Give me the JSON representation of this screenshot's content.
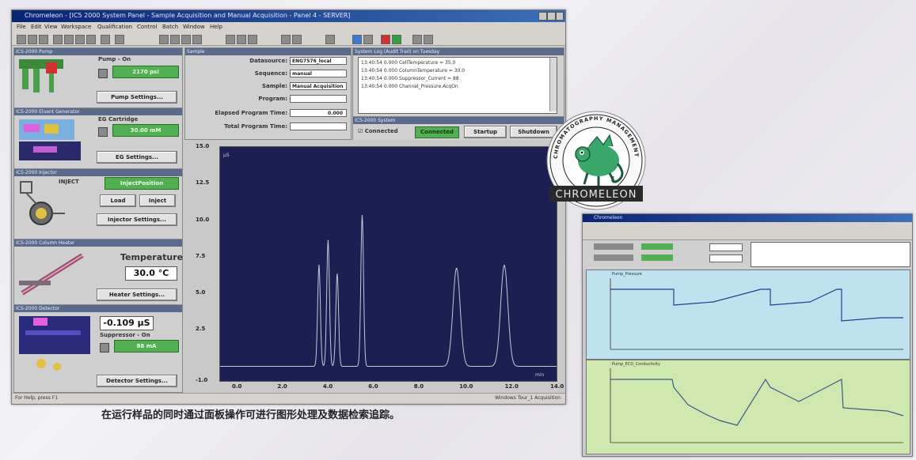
{
  "main_window": {
    "title": "Chromeleon - [IC5 2000 System Panel - Sample Acquisition and Manual Acquisition - Panel 4 - SERVER]",
    "menu": [
      "File",
      "Edit",
      "View",
      "Workspace",
      "Qualification",
      "Control",
      "Batch",
      "Window",
      "Help"
    ],
    "pump_panel": {
      "title": "ICS-2000 Pump",
      "pump_label": "Pump - On",
      "pressure": "2170 psi",
      "settings_button": "Pump Settings..."
    },
    "eluent_panel": {
      "title": "ICS-2000 Eluent Generator",
      "cartridge_label": "EG Cartridge",
      "concentration": "30.00 mM",
      "settings_button": "EG Settings..."
    },
    "injector_panel": {
      "title": "ICS-2000 Injector",
      "mode_label": "INJECT",
      "state": "InjectPosition",
      "load_button": "Load",
      "inject_button": "Inject",
      "settings_button": "Injector Settings..."
    },
    "column_panel": {
      "title": "ICS-2000 Column Heater",
      "temp_label": "Temperature",
      "temperature": "30.0 °C",
      "settings_button": "Heater Settings..."
    },
    "detector_panel": {
      "title": "ICS-2000 Detector",
      "conductivity": "-0.109 µS",
      "suppressor_label": "Suppressor - On",
      "current": "88 mA",
      "settings_button": "Detector Settings..."
    },
    "sample_panel": {
      "title": "Sample",
      "datasource_label": "Datasource:",
      "datasource_value": "ENG7576_local",
      "sequence_label": "Sequence:",
      "sequence_value": "manual",
      "sample_label": "Sample:",
      "sample_value": "Manual Acquisition",
      "program_label": "Program:",
      "program_value": "",
      "elapsed_label": "Elapsed Program Time:",
      "elapsed_value": "0.000",
      "total_label": "Total Program Time:",
      "total_value": ""
    },
    "audit_panel": {
      "title": "System Log (Audit Trail) on Tuesday",
      "lines": [
        "13:40:54 0.000 CellTemperature = 35.0",
        "13:40:54 0.000 ColumnTemperature = 30.0",
        "13:40:54 0.000 Suppressor_Current = 88",
        "13:40:54 0.000 Channel_Pressure.AcqOn"
      ]
    },
    "system_panel": {
      "title": "ICS-2000 System",
      "connected_check": "Connected",
      "connected_status": "Connected",
      "startup_button": "Startup",
      "shutdown_button": "Shutdown"
    },
    "chart_yticks": [
      "15.0",
      "12.5",
      "10.0",
      "7.5",
      "5.0",
      "2.5",
      "-1.0"
    ],
    "chart_xticks": [
      "0.0",
      "2.0",
      "4.0",
      "6.0",
      "8.0",
      "10.0",
      "12.0",
      "14.0"
    ],
    "chart_unit_left": "µS",
    "chart_unit_right": "min",
    "status_left": "For Help, press F1",
    "status_right": "Windows Tour_1     Acquisition"
  },
  "caption": "在运行样品的同时通过面板操作可进行图形处理及数据检索追踪。",
  "logo": {
    "ring_text": "CHROMATOGRAPHY MANAGEMENT SYSTEM",
    "banner_text": "CHROMELEON",
    "colors": {
      "ring": "#ffffff",
      "banner": "#2a2a2a",
      "figure": "#3aa66a"
    }
  },
  "second_window": {
    "title": "Chromeleon",
    "top_chart_label": "Pump_Pressure",
    "bottom_chart_label": "Pump_ECD_Conductivity"
  },
  "chart_data": [
    {
      "type": "line",
      "title": "",
      "xlabel": "min",
      "ylabel": "µS",
      "xlim": [
        -0.8,
        14.0
      ],
      "ylim": [
        -1.0,
        15.0
      ],
      "series": [
        {
          "peaks": [
            {
              "x": 3.55,
              "y": 6.9
            },
            {
              "x": 3.95,
              "y": 8.6
            },
            {
              "x": 4.35,
              "y": 6.3
            },
            {
              "x": 5.45,
              "y": 10.3
            },
            {
              "x": 9.6,
              "y": 6.7
            },
            {
              "x": 11.7,
              "y": 6.9
            }
          ],
          "baseline": 0.0
        }
      ],
      "colors": {
        "background": "#1b1f52",
        "trace": "#c8c8d8"
      }
    }
  ]
}
